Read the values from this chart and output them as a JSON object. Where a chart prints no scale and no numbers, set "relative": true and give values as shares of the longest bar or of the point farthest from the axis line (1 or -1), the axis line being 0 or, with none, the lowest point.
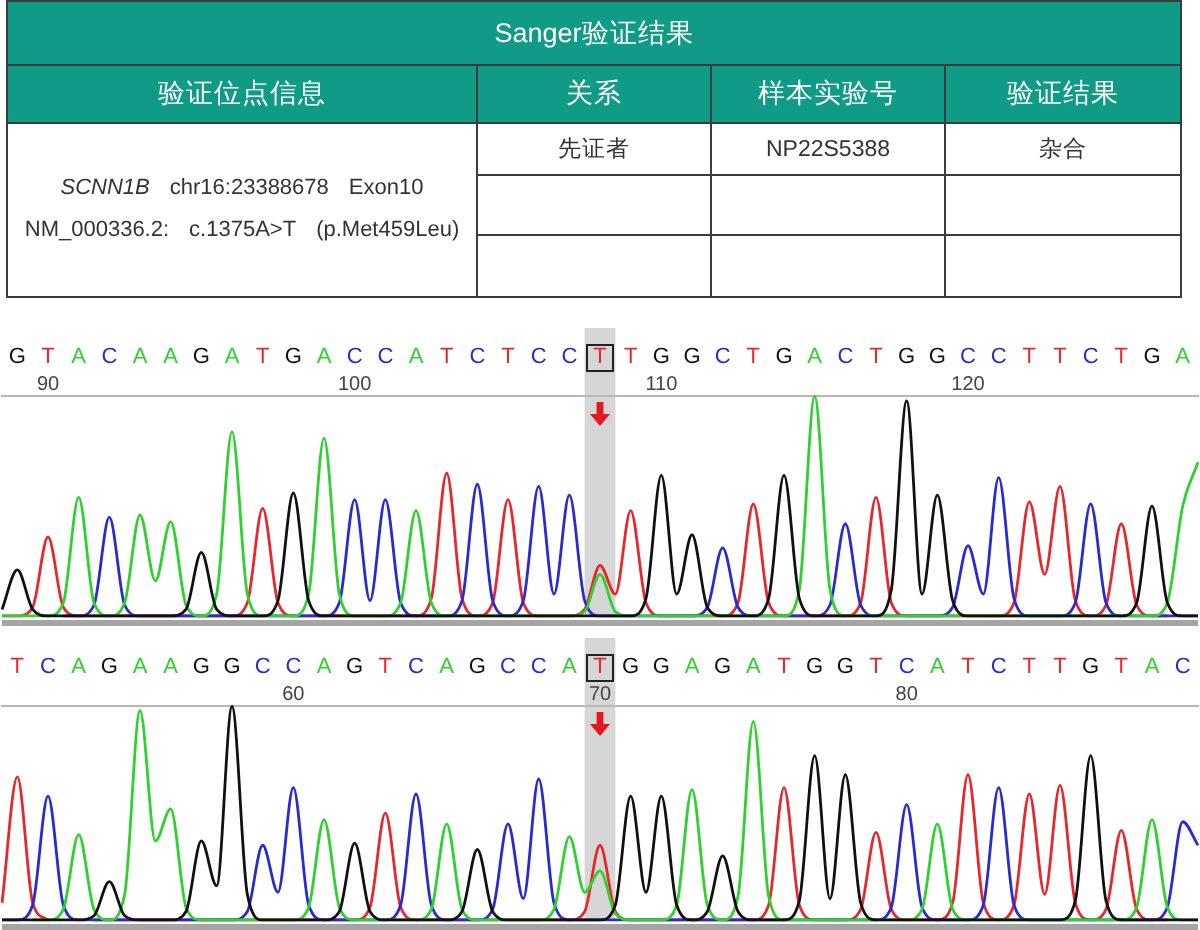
{
  "chart_data": [
    {
      "type": "other",
      "title": "Sanger验证结果",
      "annotations": [
        "验证位点信息",
        "关系",
        "样本实验号",
        "验证结果",
        "SCNN1B",
        "chr16:23388678",
        "Exon10",
        "NM_000336.2:",
        "c.1375A>T",
        "(p.Met459Leu)",
        "先证者",
        "NP22S5388",
        "杂合"
      ]
    },
    {
      "type": "line",
      "relative": true,
      "categories": [
        null,
        "G",
        null,
        "T",
        null,
        "A",
        null,
        "C",
        null,
        "A",
        null,
        "A",
        null,
        "G",
        null,
        "A",
        null,
        "T",
        null,
        "G",
        null,
        "A",
        null,
        "C",
        null,
        "C",
        null,
        "A",
        null,
        "T",
        null,
        "C",
        null,
        "T",
        null,
        "C",
        null,
        "C",
        null,
        "T",
        null,
        "T",
        null,
        "G",
        null,
        "G",
        null,
        "C",
        null,
        "T",
        null,
        "G",
        null,
        "A",
        null,
        "C",
        null,
        "T",
        null,
        "G",
        null,
        "G",
        null,
        "C",
        null,
        "C",
        null,
        "T",
        null,
        "T",
        null,
        "C",
        null,
        "T",
        null,
        "G",
        null,
        "A",
        null
      ],
      "x2lim": [
        88.5,
        127.5
      ],
      "x2ticks": [
        90,
        100,
        110,
        120
      ],
      "bands": [
        {
          "axis": "x2",
          "from": 107.5,
          "to": 108.5,
          "color": "#d6d6d6"
        }
      ],
      "series": [
        {
          "color": "#111111",
          "values": [
            0.03,
            0.21,
            0.03,
            0,
            0,
            0,
            0,
            0,
            0,
            0,
            0,
            0,
            0.03,
            0.29,
            0.03,
            0,
            0,
            0,
            0.07,
            0.56,
            0.07,
            0,
            0,
            0,
            0,
            0,
            0,
            0,
            0,
            0,
            0,
            0,
            0,
            0,
            0,
            0,
            0,
            0,
            0,
            0,
            0,
            0,
            0.08,
            0.64,
            0.1,
            0.37,
            0.04,
            0,
            0,
            0,
            0.08,
            0.64,
            0.08,
            0,
            0,
            0,
            0,
            0,
            0.12,
            0.98,
            0.1,
            0.55,
            0.07,
            0,
            0,
            0,
            0,
            0,
            0,
            0,
            0,
            0,
            0,
            0,
            0.06,
            0.5,
            0.06,
            0,
            0
          ]
        },
        {
          "color": "#2ed12e",
          "values": [
            0,
            0,
            0,
            0,
            0.06,
            0.54,
            0.06,
            0,
            0.06,
            0.46,
            0.16,
            0.43,
            0.05,
            0,
            0.1,
            0.84,
            0.1,
            0,
            0,
            0,
            0.1,
            0.81,
            0.1,
            0,
            0,
            0,
            0.06,
            0.48,
            0.06,
            0,
            0,
            0,
            0,
            0,
            0,
            0,
            0,
            0,
            0.02,
            0.19,
            0.02,
            0,
            0,
            0,
            0,
            0,
            0,
            0,
            0,
            0,
            0,
            0,
            0.12,
            1,
            0.12,
            0,
            0,
            0,
            0,
            0,
            0,
            0,
            0,
            0,
            0,
            0,
            0,
            0,
            0,
            0,
            0,
            0,
            0,
            0,
            0,
            0,
            0.06,
            0.5,
            0.7
          ]
        },
        {
          "color": "#2a2ad2",
          "values": [
            null,
            null,
            null,
            null,
            0,
            0,
            0.05,
            0.45,
            0.05,
            0,
            0,
            0,
            0,
            0,
            0,
            0,
            0,
            0,
            0,
            0,
            0,
            0,
            0.06,
            0.53,
            0.07,
            0.53,
            0.06,
            0,
            0,
            0,
            0.07,
            0.6,
            0.07,
            0,
            0.07,
            0.59,
            0.1,
            0.55,
            0.07,
            0,
            0,
            0,
            0,
            0,
            0,
            0,
            0.04,
            0.31,
            0.04,
            0,
            0,
            0,
            0,
            0,
            0.05,
            0.42,
            0.05,
            0,
            0,
            0,
            0,
            0,
            0.04,
            0.32,
            0.1,
            0.63,
            0.08,
            0,
            0,
            0,
            0.06,
            0.51,
            0.06,
            0,
            0,
            0,
            0,
            0,
            0
          ]
        },
        {
          "color": "#e8272d",
          "values": [
            0,
            0,
            0.04,
            0.36,
            0.04,
            0,
            0,
            0,
            0,
            0,
            0,
            0,
            0,
            0,
            0,
            0,
            0.06,
            0.49,
            0.06,
            0,
            0,
            0,
            0,
            0,
            0,
            0,
            0,
            0,
            0.08,
            0.65,
            0.08,
            0,
            0.06,
            0.53,
            0.06,
            0,
            0,
            0,
            0.03,
            0.23,
            0.1,
            0.48,
            0.06,
            0,
            0,
            0,
            0,
            0,
            0.06,
            0.51,
            0.06,
            0,
            0,
            0,
            0,
            0,
            0.06,
            0.54,
            0.06,
            0,
            0,
            0,
            0,
            0,
            0,
            0,
            0.06,
            0.52,
            0.19,
            0.59,
            0.07,
            0,
            0.05,
            0.42,
            0.05,
            0,
            0,
            null,
            null
          ]
        }
      ]
    },
    {
      "type": "line",
      "relative": true,
      "categories": [
        null,
        "T",
        null,
        "C",
        null,
        "A",
        null,
        "G",
        null,
        "A",
        null,
        "A",
        null,
        "G",
        null,
        "G",
        null,
        "C",
        null,
        "C",
        null,
        "A",
        null,
        "G",
        null,
        "T",
        null,
        "C",
        null,
        "A",
        null,
        "G",
        null,
        "C",
        null,
        "C",
        null,
        "A",
        null,
        "T",
        null,
        "G",
        null,
        "G",
        null,
        "A",
        null,
        "G",
        null,
        "A",
        null,
        "T",
        null,
        "G",
        null,
        "G",
        null,
        "T",
        null,
        "C",
        null,
        "A",
        null,
        "T",
        null,
        "C",
        null,
        "T",
        null,
        "T",
        null,
        "G",
        null,
        "T",
        null,
        "A",
        null,
        "C",
        null
      ],
      "x2lim": [
        50.5,
        89.5
      ],
      "x2ticks": [
        60,
        70,
        80
      ],
      "bands": [
        {
          "axis": "x2",
          "from": 69.5,
          "to": 70.5,
          "color": "#d6d6d6"
        }
      ],
      "series": [
        {
          "color": "#111111",
          "values": [
            0,
            0,
            0,
            0,
            0,
            0,
            0.02,
            0.18,
            0.02,
            0,
            0,
            0,
            0.04,
            0.37,
            0.16,
            1,
            0.12,
            0,
            0,
            0,
            0,
            0,
            0.04,
            0.36,
            0.04,
            0,
            0,
            0,
            0,
            0,
            0.04,
            0.33,
            0.04,
            0,
            0,
            0,
            0,
            0,
            0,
            0,
            0.07,
            0.58,
            0.13,
            0.58,
            0.07,
            0,
            0.04,
            0.3,
            0.04,
            0,
            0,
            0,
            0.09,
            0.77,
            0.1,
            0.68,
            0.08,
            0,
            0,
            0,
            0,
            0,
            0,
            0,
            0,
            0,
            0,
            0,
            0,
            0,
            0.09,
            0.77,
            0.09,
            0,
            0,
            0,
            0,
            0,
            0
          ]
        },
        {
          "color": "#2ed12e",
          "values": [
            null,
            null,
            0,
            0,
            0.05,
            0.4,
            0.05,
            0,
            0.12,
            0.98,
            0.37,
            0.52,
            0.06,
            0,
            0,
            0,
            0,
            0,
            0,
            0,
            0.06,
            0.47,
            0.06,
            0,
            0,
            0,
            0,
            0,
            0.05,
            0.45,
            0.05,
            0,
            0,
            0,
            0,
            0,
            0.05,
            0.39,
            0.13,
            0.23,
            0.03,
            0,
            0,
            0,
            0.07,
            0.61,
            0.07,
            0,
            0.11,
            0.93,
            0.11,
            0,
            0,
            0,
            0,
            0,
            0,
            0,
            0,
            0,
            0.05,
            0.45,
            0.05,
            0,
            0,
            0,
            0,
            0,
            0,
            0,
            0,
            0,
            0,
            0,
            0.06,
            0.47,
            0.06,
            0,
            0
          ]
        },
        {
          "color": "#2a2ad2",
          "values": [
            0,
            0,
            0.07,
            0.58,
            0.07,
            0,
            0,
            0,
            0,
            0,
            0,
            0,
            0,
            0,
            0,
            0,
            0.04,
            0.35,
            0.13,
            0.62,
            0.07,
            0,
            0,
            0,
            0,
            0,
            0.07,
            0.59,
            0.07,
            0,
            0,
            0,
            0.05,
            0.45,
            0.1,
            0.66,
            0.08,
            0,
            0,
            0,
            0,
            0,
            0,
            0,
            0,
            0,
            0,
            0,
            0,
            0,
            0,
            0,
            0,
            0,
            0,
            0,
            0,
            0,
            0.06,
            0.54,
            0.06,
            0,
            0,
            0,
            0.07,
            0.62,
            0.07,
            0,
            0,
            0,
            0,
            0,
            0,
            0,
            0,
            0,
            0.06,
            0.46,
            0.35
          ]
        },
        {
          "color": "#e8272d",
          "values": [
            0.08,
            0.67,
            0.08,
            0,
            null,
            null,
            0,
            0,
            0,
            0,
            0,
            0,
            0,
            0,
            0,
            0,
            0,
            0,
            0,
            0,
            0,
            0,
            0,
            0,
            0.06,
            0.5,
            0.06,
            0,
            0,
            0,
            0,
            0,
            0,
            0,
            0,
            0,
            0,
            0,
            0.04,
            0.35,
            0.04,
            0,
            0,
            0,
            0,
            0,
            0,
            0,
            0,
            0,
            0.07,
            0.62,
            0.07,
            0,
            0,
            0,
            0.05,
            0.41,
            0.05,
            0,
            0,
            0,
            0.08,
            0.68,
            0.08,
            0,
            0.07,
            0.59,
            0.12,
            0.63,
            0.08,
            0,
            0.05,
            0.42,
            0.05,
            0,
            0,
            null,
            null
          ]
        }
      ]
    }
  ]
}
